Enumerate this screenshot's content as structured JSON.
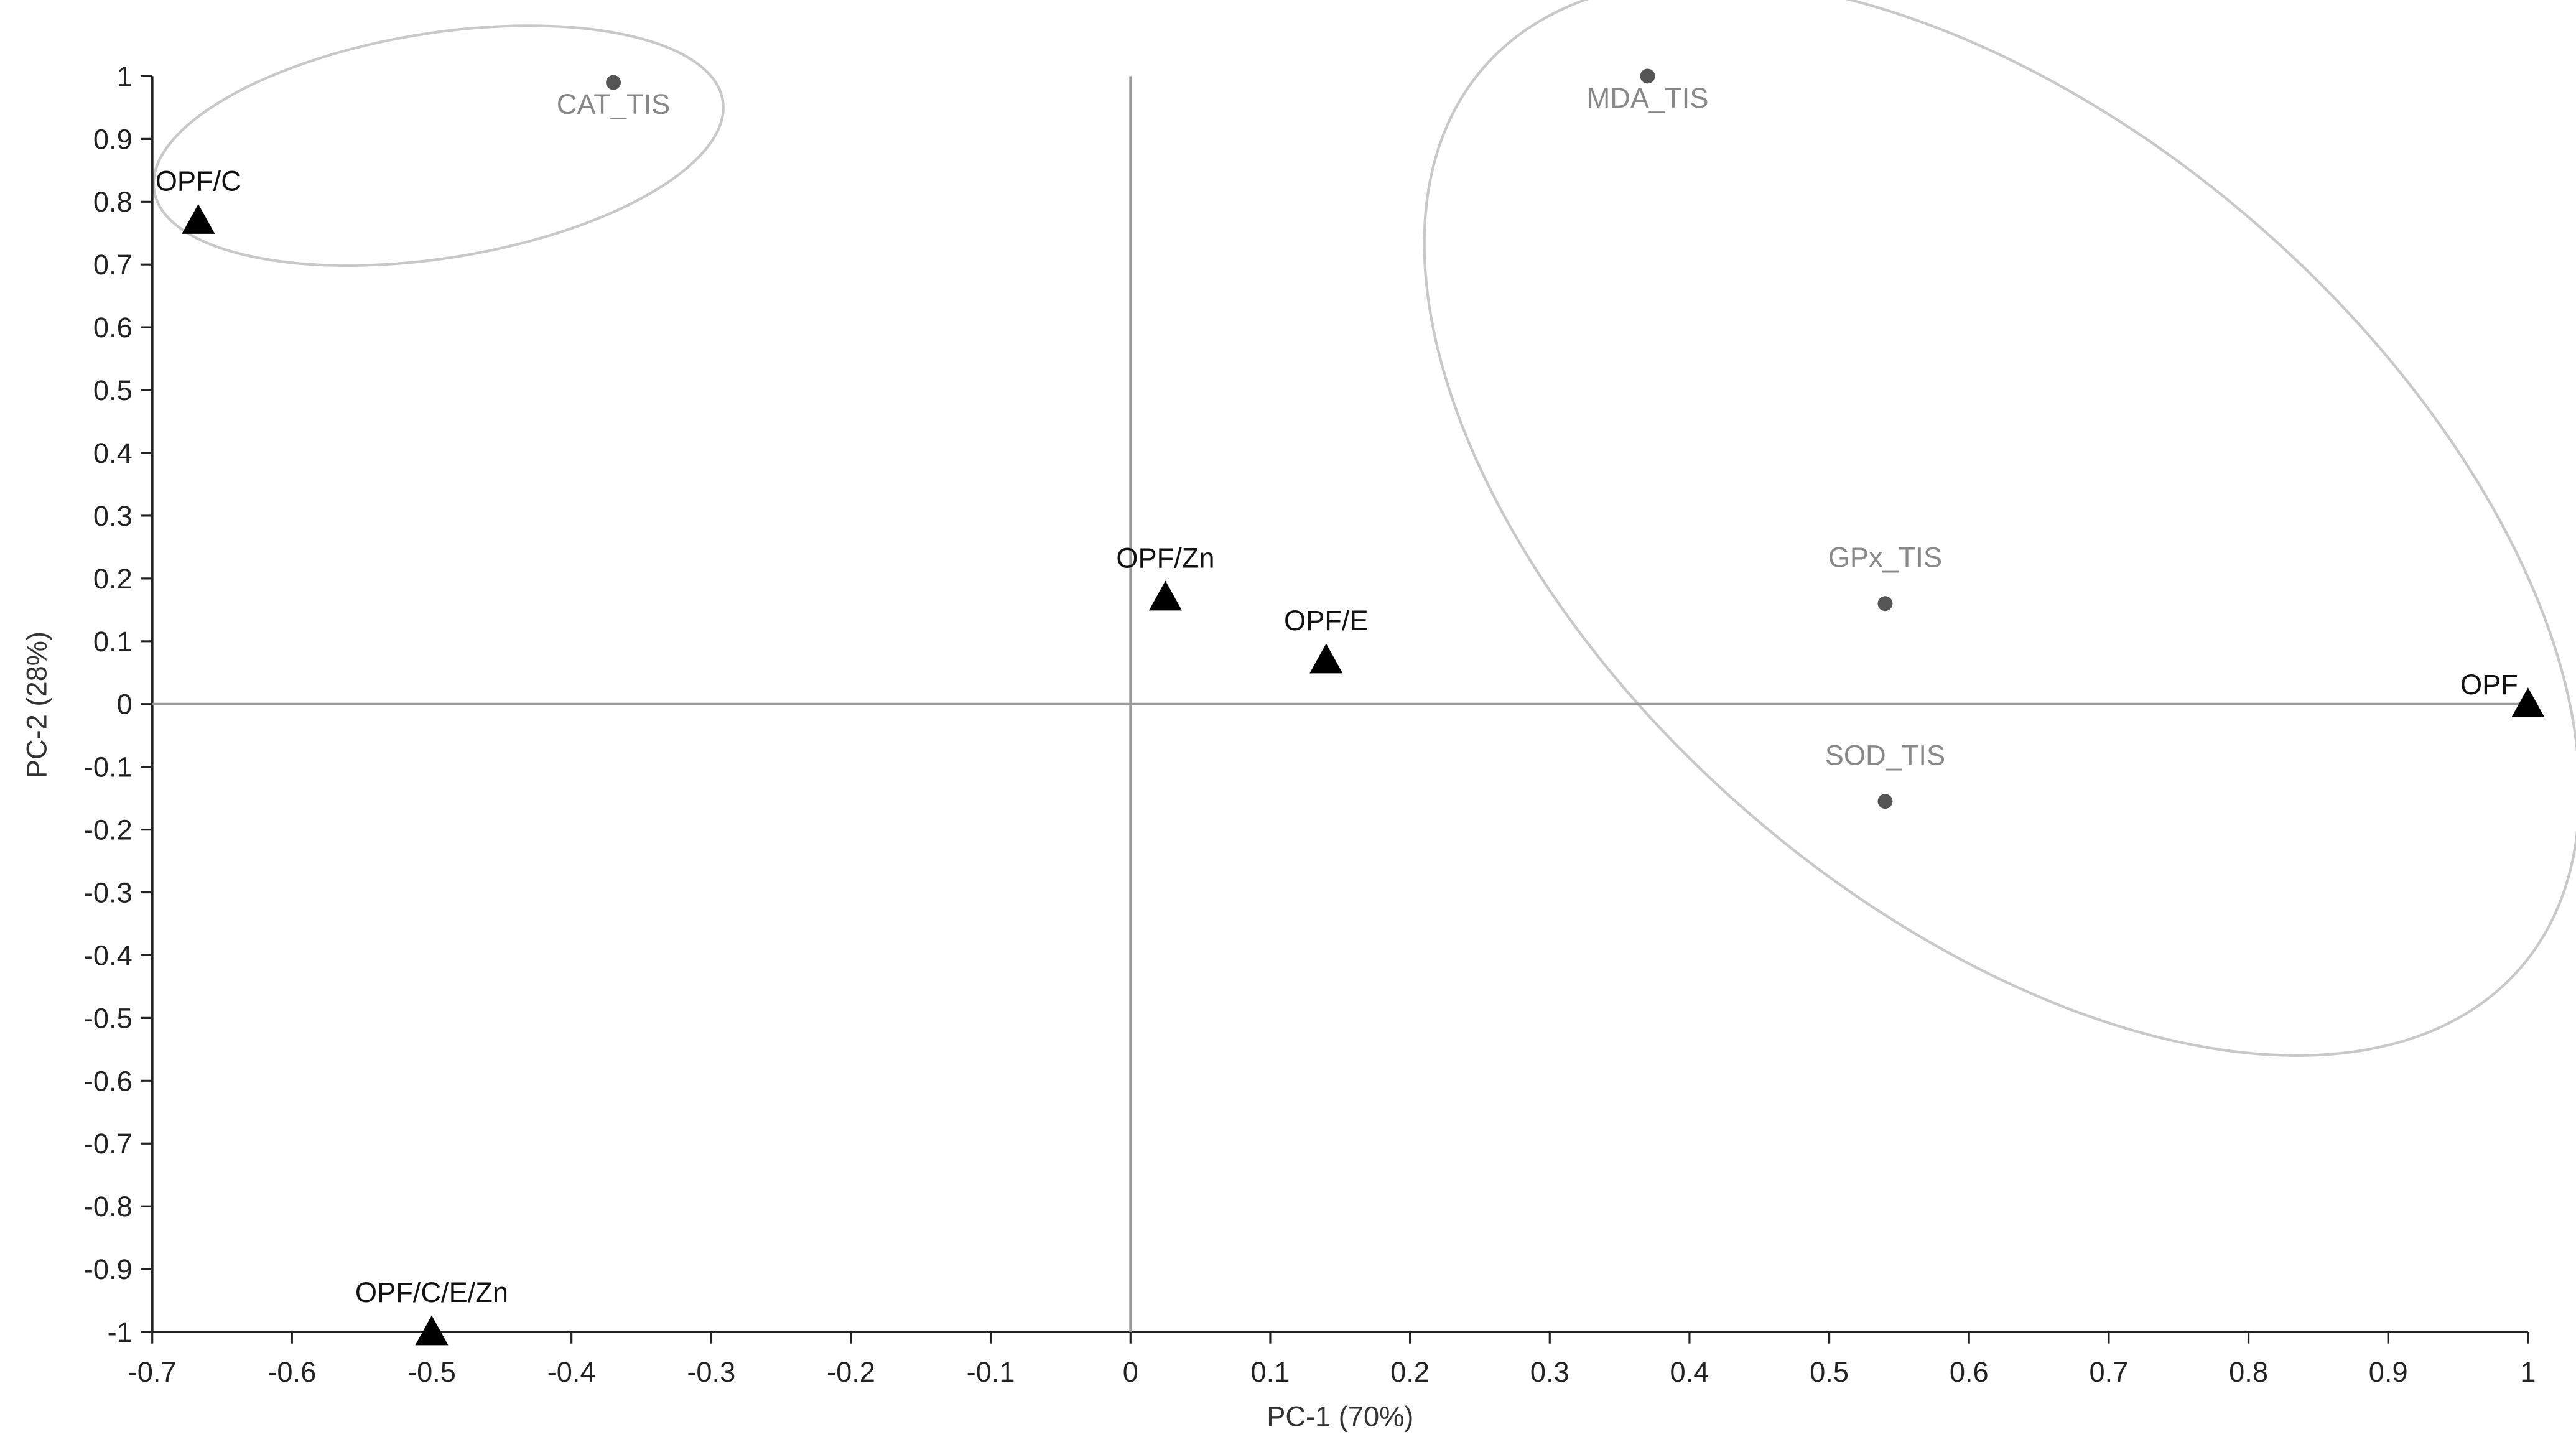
{
  "chart_data": {
    "type": "scatter",
    "x_label": "PC-1 (70%)",
    "y_label": "PC-2 (28%)",
    "xlim": [
      -0.7,
      1
    ],
    "ylim": [
      -1,
      1
    ],
    "xticks": [
      -0.7,
      -0.6,
      -0.5,
      -0.4,
      -0.3,
      -0.2,
      -0.1,
      0,
      0.1,
      0.2,
      0.3,
      0.4,
      0.5,
      0.6,
      0.7,
      0.8,
      0.9,
      1
    ],
    "yticks": [
      -1,
      -0.9,
      -0.8,
      -0.7,
      -0.6,
      -0.5,
      -0.4,
      -0.3,
      -0.2,
      -0.1,
      0,
      0.1,
      0.2,
      0.3,
      0.4,
      0.5,
      0.6,
      0.7,
      0.8,
      0.9,
      1
    ],
    "zero_lines": true,
    "series": [
      {
        "marker": "triangle",
        "color": "#000000",
        "labels": [
          "OPF/C",
          "OPF/Zn",
          "OPF/E",
          "OPF",
          "OPF/C/E/Zn"
        ],
        "x": [
          -0.667,
          0.025,
          0.14,
          1.0,
          -0.5
        ],
        "values": [
          0.77,
          0.17,
          0.07,
          0.0,
          -1.0
        ]
      },
      {
        "marker": "dot",
        "color": "#555555",
        "labels": [
          "CAT_TIS",
          "MDA_TIS",
          "GPx_TIS",
          "SOD_TIS"
        ],
        "x": [
          -0.37,
          0.37,
          0.54,
          0.54
        ],
        "values": [
          0.99,
          1.0,
          0.16,
          -0.155
        ]
      }
    ]
  }
}
